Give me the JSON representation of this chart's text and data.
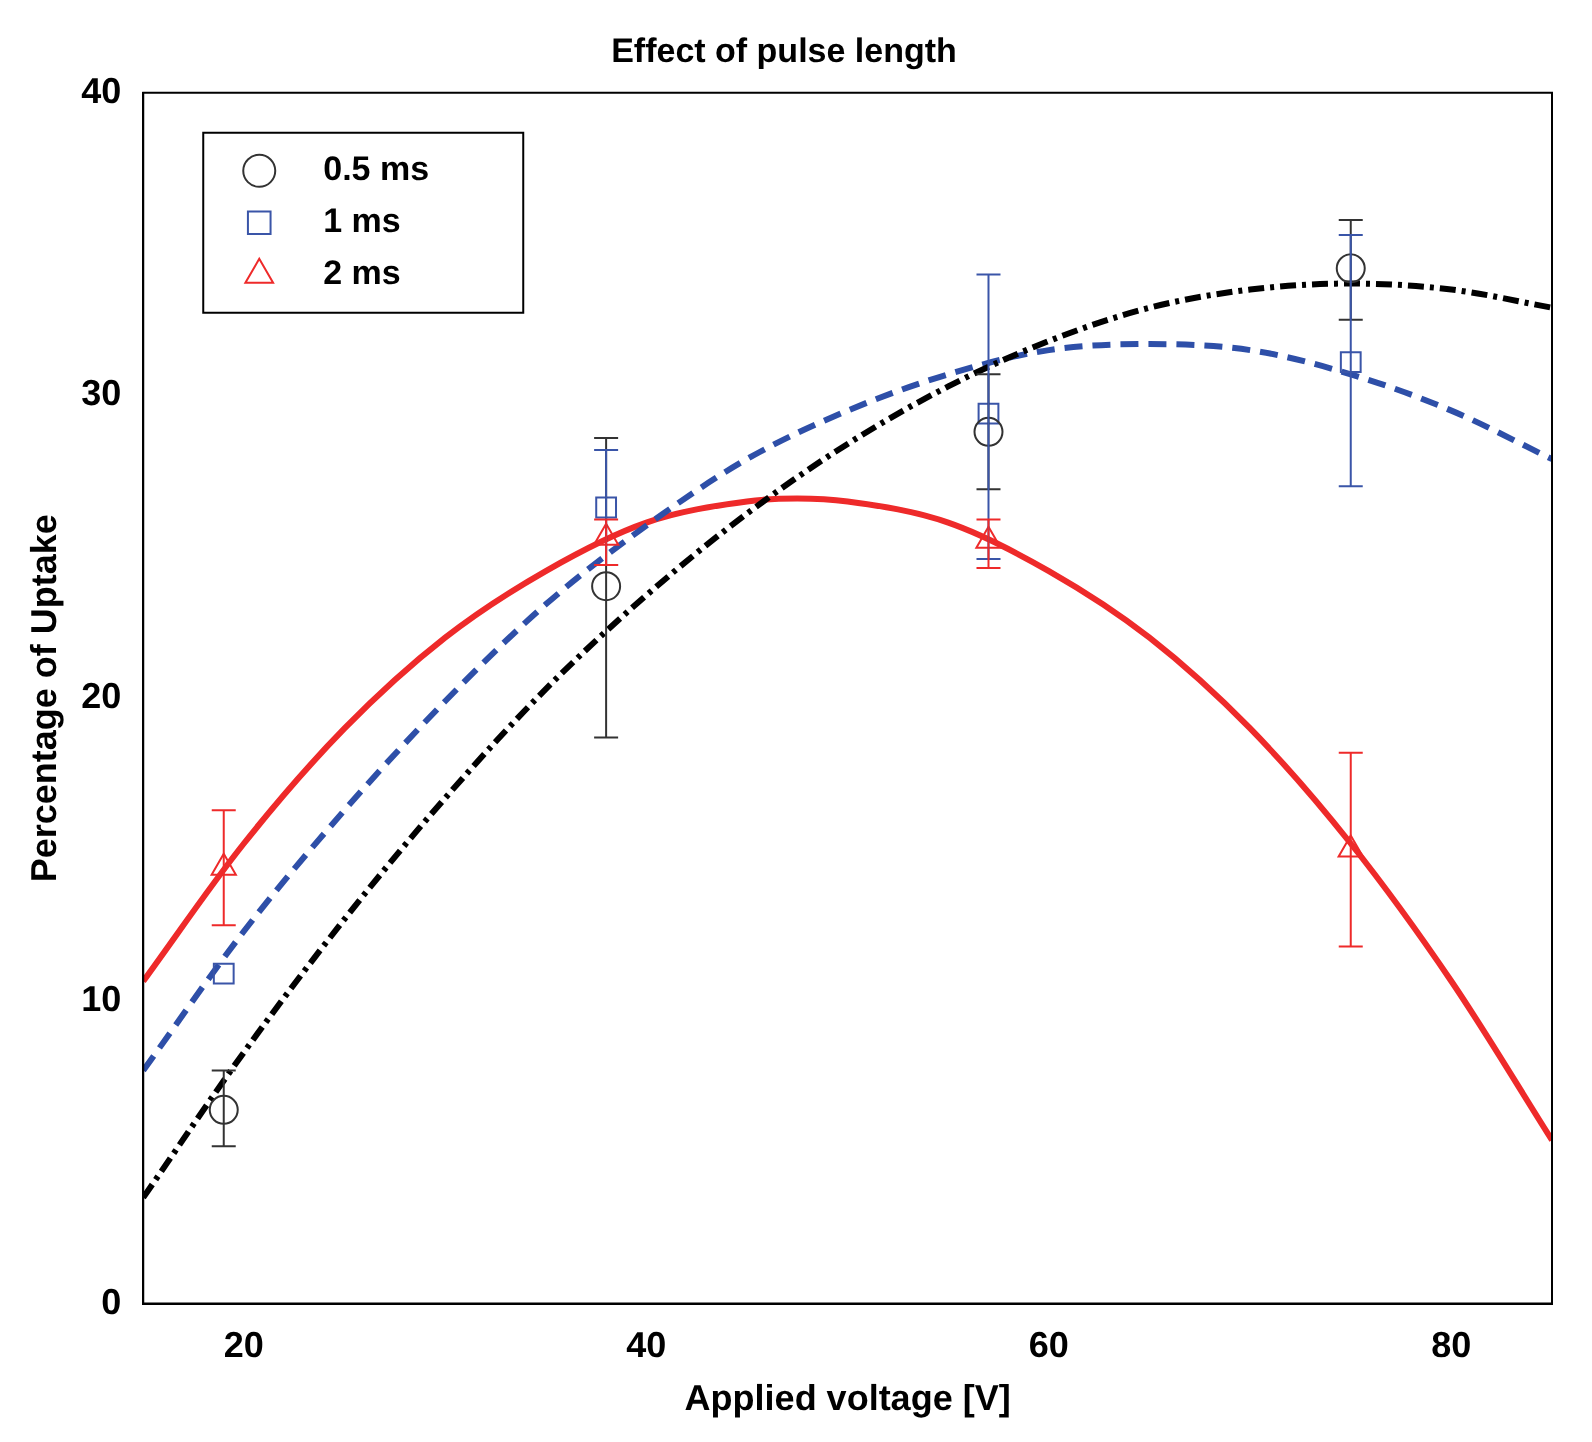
{
  "chart_data": {
    "type": "scatter",
    "title": "Effect of pulse length",
    "xlabel": "Applied voltage [V]",
    "ylabel": "Percentage of Uptake",
    "xlim": [
      15,
      85
    ],
    "xticks": [
      20,
      40,
      60,
      80
    ],
    "ylim": [
      0,
      40
    ],
    "yticks": [
      0,
      10,
      20,
      30,
      40
    ],
    "grid": false,
    "legend": "top left",
    "series": [
      {
        "name": "0.5 ms",
        "type": "scatter",
        "marker": "circle",
        "color": "#333333",
        "x": [
          19,
          38,
          57,
          75
        ],
        "values": [
          6.4,
          23.7,
          28.8,
          34.2
        ],
        "errors": [
          [
            5.2,
            7.7
          ],
          [
            18.7,
            28.6
          ],
          [
            26.9,
            30.7
          ],
          [
            32.5,
            35.8
          ]
        ]
      },
      {
        "name": "1 ms",
        "type": "scatter",
        "marker": "square",
        "color": "#3a55a8",
        "x": [
          19,
          38,
          57,
          75
        ],
        "values": [
          10.9,
          26.3,
          29.4,
          31.1
        ],
        "errors": [
          null,
          [
            24.4,
            28.2
          ],
          [
            24.6,
            34.0
          ],
          [
            27.0,
            35.3
          ]
        ]
      },
      {
        "name": "2 ms",
        "type": "scatter",
        "marker": "triangle",
        "color": "#ee2a2a",
        "x": [
          19,
          38,
          57,
          75
        ],
        "values": [
          14.4,
          25.3,
          25.2,
          15.0
        ],
        "errors": [
          [
            12.5,
            16.3
          ],
          [
            24.4,
            25.9
          ],
          [
            24.3,
            25.9
          ],
          [
            11.8,
            18.2
          ]
        ]
      },
      {
        "type": "line",
        "marker": "none",
        "line_style": "dotted",
        "color": "#000000",
        "x": [
          15,
          20,
          25,
          30,
          35,
          40,
          45,
          50,
          55,
          60,
          65,
          70,
          75,
          80,
          85
        ],
        "values": [
          3.5,
          8.3,
          12.7,
          16.7,
          20.3,
          23.4,
          26.1,
          28.4,
          30.3,
          31.8,
          32.9,
          33.5,
          33.7,
          33.5,
          32.9
        ]
      },
      {
        "type": "line",
        "marker": "none",
        "line_style": "dashed",
        "color": "#2e4fa8",
        "x": [
          15,
          20,
          25,
          30,
          35,
          40,
          45,
          50,
          55,
          60,
          65,
          70,
          75,
          80,
          85
        ],
        "values": [
          7.7,
          12.3,
          16.3,
          19.9,
          23.1,
          25.7,
          27.9,
          29.5,
          30.7,
          31.5,
          31.7,
          31.5,
          30.7,
          29.5,
          27.9
        ]
      },
      {
        "type": "line",
        "marker": "none",
        "line_style": "solid",
        "color": "#ee2a2a",
        "x": [
          15,
          20,
          25,
          30,
          35,
          40,
          45,
          47.5,
          50,
          55,
          60,
          65,
          70,
          75,
          80,
          85
        ],
        "values": [
          10.65,
          15.2,
          19.0,
          22.0,
          24.2,
          25.8,
          26.5,
          26.6,
          26.5,
          25.8,
          24.2,
          22.0,
          19.0,
          15.2,
          10.65,
          5.4
        ]
      }
    ]
  }
}
